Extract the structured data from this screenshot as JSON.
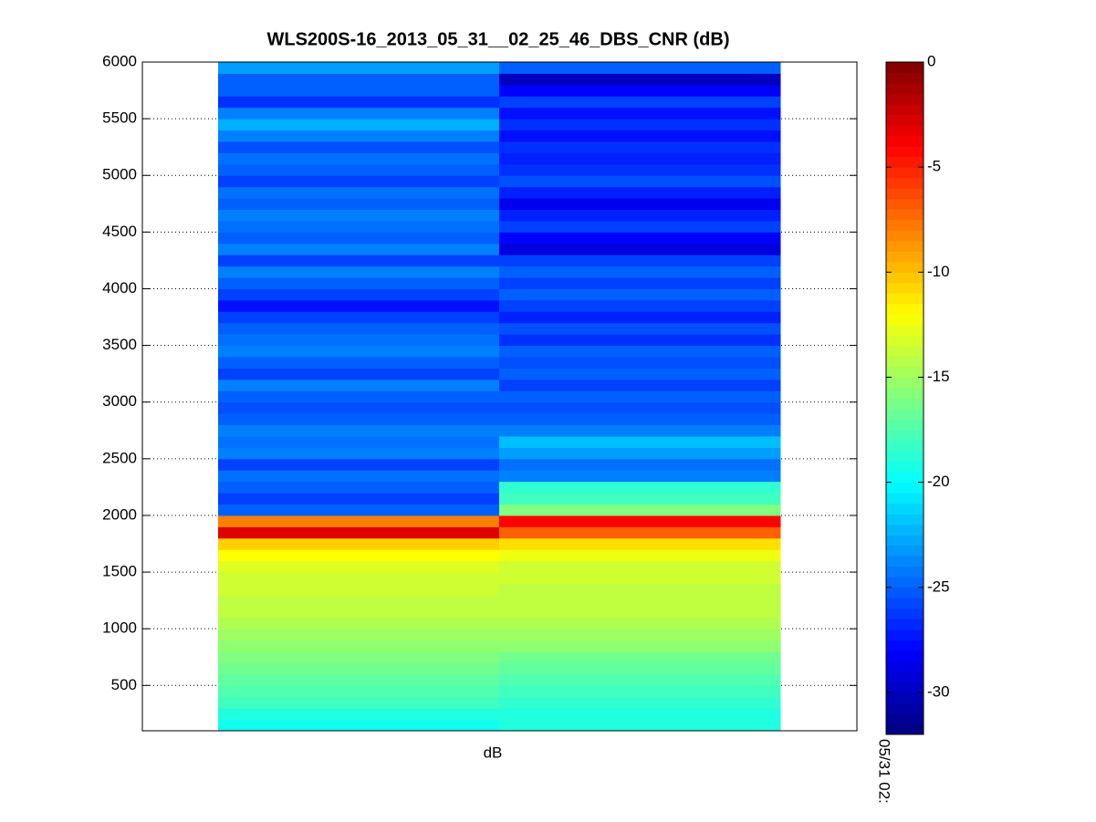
{
  "chart_data": {
    "type": "heatmap",
    "title": "WLS200S-16_2013_05_31__02_25_46_DBS_CNR (dB)",
    "xlabel": "dB",
    "annotation": "05/31 02:",
    "colormap": "jet",
    "grid": true,
    "ylim": [
      100,
      6000
    ],
    "yticks": [
      500,
      1000,
      1500,
      2000,
      2500,
      3000,
      3500,
      4000,
      4500,
      5000,
      5500,
      6000
    ],
    "clim": [
      -32,
      0
    ],
    "cticks": [
      0,
      -5,
      -10,
      -15,
      -20,
      -25,
      -30
    ],
    "ybins": [
      100,
      200,
      300,
      400,
      500,
      600,
      700,
      800,
      900,
      1000,
      1100,
      1200,
      1300,
      1400,
      1500,
      1600,
      1700,
      1800,
      1900,
      2000,
      2100,
      2200,
      2300,
      2400,
      2500,
      2600,
      2700,
      2800,
      2900,
      3000,
      3100,
      3200,
      3300,
      3400,
      3500,
      3600,
      3700,
      3800,
      3900,
      4000,
      4100,
      4200,
      4300,
      4400,
      4500,
      4600,
      4700,
      4800,
      4900,
      5000,
      5100,
      5200,
      5300,
      5400,
      5500,
      5600,
      5700,
      5800,
      5900,
      6000
    ],
    "series": [
      {
        "values": [
          -19.5,
          -19,
          -18,
          -17.5,
          -17,
          -16.5,
          -16,
          -15.5,
          -15,
          -14.5,
          -14,
          -14,
          -13.5,
          -13.5,
          -13,
          -12,
          -10.5,
          -3,
          -8,
          -25,
          -26,
          -25,
          -24.5,
          -26,
          -24,
          -24.5,
          -24,
          -25,
          -25.5,
          -25,
          -24,
          -26,
          -25,
          -24,
          -24.5,
          -25,
          -26,
          -27.5,
          -26,
          -25,
          -24,
          -26,
          -24,
          -25,
          -24.5,
          -24,
          -25,
          -24.5,
          -26,
          -25,
          -24.5,
          -25.5,
          -24,
          -22.5,
          -24,
          -26.5,
          -25,
          -25,
          -23
        ]
      },
      {
        "values": [
          -19,
          -19,
          -18.5,
          -18,
          -17.5,
          -17,
          -16.5,
          -15.5,
          -15,
          -14.5,
          -14,
          -14,
          -14,
          -13.5,
          -13.5,
          -12.5,
          -11,
          -7,
          -4,
          -16,
          -18,
          -18.5,
          -24,
          -24.5,
          -23,
          -22,
          -24,
          -25,
          -25.5,
          -25,
          -26,
          -25,
          -25.5,
          -25,
          -26.5,
          -25.5,
          -27,
          -26,
          -25,
          -26,
          -25,
          -26,
          -29,
          -28,
          -26,
          -27,
          -28.5,
          -27,
          -25.5,
          -26.5,
          -27,
          -26.5,
          -27.5,
          -26.5,
          -27.5,
          -26,
          -28,
          -30,
          -25
        ]
      }
    ]
  }
}
